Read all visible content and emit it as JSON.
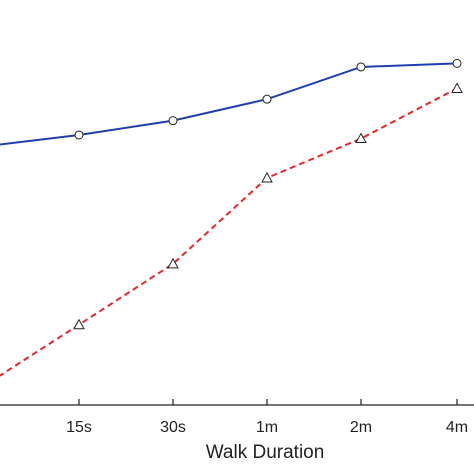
{
  "chart_data": {
    "type": "line",
    "xlabel": "Walk Duration",
    "categories": [
      "",
      "15s",
      "30s",
      "1m",
      "2m",
      "4m"
    ],
    "ylim": [
      0,
      100
    ],
    "grid": false,
    "series": [
      {
        "color": "#1f3fae",
        "line_style": "solid",
        "marker": "circle",
        "values": [
          66,
          69,
          73,
          79,
          88,
          89
        ]
      },
      {
        "color": "#e8262b",
        "line_style": "dashed",
        "marker": "triangle",
        "values": [
          0,
          16,
          33,
          57,
          68,
          82
        ]
      }
    ]
  }
}
